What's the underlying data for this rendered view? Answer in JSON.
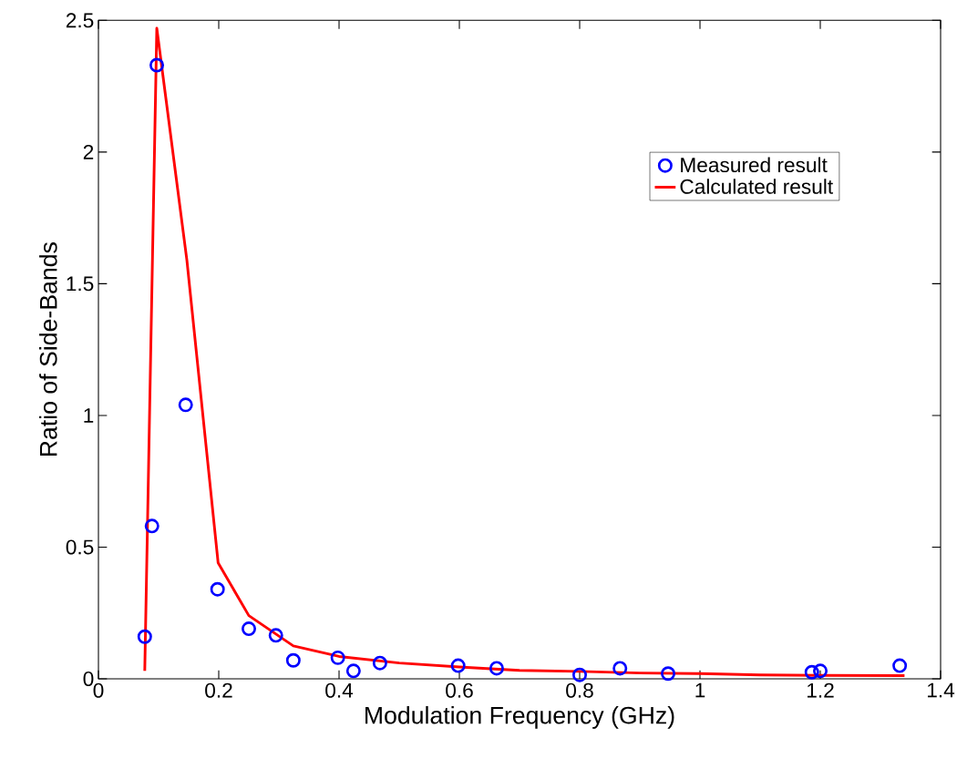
{
  "chart_data": {
    "type": "scatter",
    "xlabel": "Modulation Frequency (GHz)",
    "ylabel": "Ratio of Side-Bands",
    "xlim": [
      0,
      1.4
    ],
    "ylim": [
      0,
      2.5
    ],
    "xticks": [
      0,
      0.2,
      0.4,
      0.6,
      0.8,
      1,
      1.2,
      1.4
    ],
    "yticks": [
      0,
      0.5,
      1,
      1.5,
      2,
      2.5
    ],
    "grid": false,
    "legend": "top right",
    "series": [
      {
        "name": "Measured result",
        "marker": "circle",
        "color": "#0000ff",
        "x": [
          0.077,
          0.089,
          0.097,
          0.145,
          0.198,
          0.25,
          0.295,
          0.324,
          0.398,
          0.424,
          0.468,
          0.598,
          0.662,
          0.8,
          0.867,
          0.947,
          1.186,
          1.2,
          1.332
        ],
        "values": [
          0.16,
          0.58,
          2.33,
          1.04,
          0.34,
          0.19,
          0.165,
          0.07,
          0.08,
          0.03,
          0.06,
          0.05,
          0.04,
          0.015,
          0.04,
          0.02,
          0.025,
          0.03,
          0.05
        ]
      },
      {
        "name": "Calculated result",
        "type": "line",
        "marker": "none",
        "line_style": "solid",
        "color": "#ff0000",
        "x": [
          0.077,
          0.097,
          0.147,
          0.199,
          0.25,
          0.324,
          0.4,
          0.5,
          0.6,
          0.7,
          0.8,
          0.9,
          1.0,
          1.1,
          1.2,
          1.34
        ],
        "values": [
          0.03,
          2.47,
          1.59,
          0.44,
          0.24,
          0.125,
          0.085,
          0.06,
          0.045,
          0.032,
          0.028,
          0.022,
          0.02,
          0.015,
          0.013,
          0.012
        ]
      }
    ]
  }
}
